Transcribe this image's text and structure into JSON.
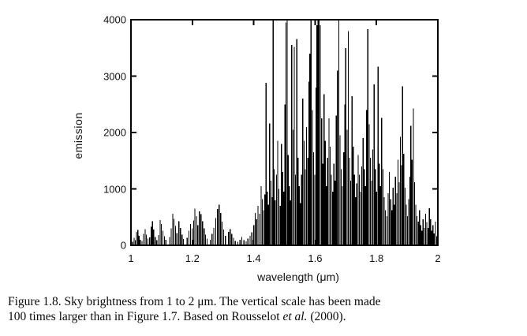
{
  "figure": {
    "caption": {
      "line1": "Figure 1.8. Sky brightness from 1 to 2 μm. The vertical scale has been made",
      "line2_pre": "100 times larger than in Figure 1.7. Based on Rousselot ",
      "line2_italic": "et al.",
      "line2_post": " (2000)."
    }
  },
  "colors": {
    "ink": "#000000",
    "background": "#ffffff"
  },
  "chart_data": {
    "type": "bar",
    "subtype": "emission-line-spectrum",
    "title": "",
    "xlabel": "wavelength (μm)",
    "ylabel": "emission",
    "xlim": [
      1,
      2
    ],
    "ylim": [
      0,
      4000
    ],
    "grid": false,
    "legend": "none",
    "border": "box-with-mirrored-ticks",
    "xticks": [
      {
        "value": 1.0,
        "label": "1"
      },
      {
        "value": 1.2,
        "label": "1.2"
      },
      {
        "value": 1.4,
        "label": "1.4"
      },
      {
        "value": 1.6,
        "label": "1.6"
      },
      {
        "value": 1.8,
        "label": "1.8"
      },
      {
        "value": 2.0,
        "label": "2"
      }
    ],
    "yticks": [
      {
        "value": 0,
        "label": "0"
      },
      {
        "value": 1000,
        "label": "1000"
      },
      {
        "value": 2000,
        "label": "2000"
      },
      {
        "value": 3000,
        "label": "3000"
      },
      {
        "value": 4000,
        "label": "4000"
      }
    ],
    "lines_note": "each entry is [wavelength_um, emission]; values of 4000 are clipped at the plot top",
    "lines": [
      [
        1.006,
        60
      ],
      [
        1.01,
        130
      ],
      [
        1.014,
        90
      ],
      [
        1.018,
        240
      ],
      [
        1.022,
        270
      ],
      [
        1.026,
        170
      ],
      [
        1.03,
        100
      ],
      [
        1.036,
        80
      ],
      [
        1.041,
        200
      ],
      [
        1.046,
        290
      ],
      [
        1.05,
        190
      ],
      [
        1.055,
        120
      ],
      [
        1.061,
        140
      ],
      [
        1.066,
        330
      ],
      [
        1.07,
        430
      ],
      [
        1.074,
        280
      ],
      [
        1.079,
        150
      ],
      [
        1.084,
        90
      ],
      [
        1.09,
        180
      ],
      [
        1.095,
        450
      ],
      [
        1.099,
        380
      ],
      [
        1.104,
        260
      ],
      [
        1.109,
        160
      ],
      [
        1.114,
        100
      ],
      [
        1.126,
        150
      ],
      [
        1.131,
        300
      ],
      [
        1.136,
        560
      ],
      [
        1.14,
        470
      ],
      [
        1.145,
        340
      ],
      [
        1.15,
        220
      ],
      [
        1.156,
        430
      ],
      [
        1.161,
        310
      ],
      [
        1.166,
        190
      ],
      [
        1.171,
        110
      ],
      [
        1.183,
        130
      ],
      [
        1.189,
        260
      ],
      [
        1.194,
        380
      ],
      [
        1.199,
        300
      ],
      [
        1.204,
        440
      ],
      [
        1.208,
        650
      ],
      [
        1.213,
        520
      ],
      [
        1.218,
        360
      ],
      [
        1.223,
        600
      ],
      [
        1.228,
        550
      ],
      [
        1.233,
        430
      ],
      [
        1.238,
        300
      ],
      [
        1.243,
        190
      ],
      [
        1.248,
        120
      ],
      [
        1.258,
        100
      ],
      [
        1.264,
        200
      ],
      [
        1.27,
        310
      ],
      [
        1.276,
        480
      ],
      [
        1.282,
        640
      ],
      [
        1.287,
        720
      ],
      [
        1.292,
        570
      ],
      [
        1.297,
        420
      ],
      [
        1.302,
        280
      ],
      [
        1.308,
        170
      ],
      [
        1.318,
        240
      ],
      [
        1.323,
        290
      ],
      [
        1.328,
        200
      ],
      [
        1.334,
        130
      ],
      [
        1.34,
        80
      ],
      [
        1.348,
        60
      ],
      [
        1.355,
        100
      ],
      [
        1.361,
        150
      ],
      [
        1.368,
        90
      ],
      [
        1.375,
        70
      ],
      [
        1.381,
        120
      ],
      [
        1.388,
        170
      ],
      [
        1.394,
        230
      ],
      [
        1.4,
        360
      ],
      [
        1.405,
        570
      ],
      [
        1.409,
        460
      ],
      [
        1.414,
        700
      ],
      [
        1.419,
        560
      ],
      [
        1.424,
        1050
      ],
      [
        1.428,
        820
      ],
      [
        1.432,
        620
      ],
      [
        1.436,
        900
      ],
      [
        1.44,
        2880
      ],
      [
        1.444,
        950
      ],
      [
        1.448,
        720
      ],
      [
        1.452,
        2160
      ],
      [
        1.456,
        1150
      ],
      [
        1.46,
        850
      ],
      [
        1.463,
        4000
      ],
      [
        1.466,
        1350
      ],
      [
        1.47,
        800
      ],
      [
        1.474,
        1250
      ],
      [
        1.478,
        1850
      ],
      [
        1.482,
        1000
      ],
      [
        1.486,
        700
      ],
      [
        1.49,
        1800
      ],
      [
        1.494,
        1300
      ],
      [
        1.498,
        950
      ],
      [
        1.502,
        2500
      ],
      [
        1.505,
        3950
      ],
      [
        1.509,
        4000
      ],
      [
        1.512,
        1600
      ],
      [
        1.516,
        1050
      ],
      [
        1.52,
        800
      ],
      [
        1.524,
        3550
      ],
      [
        1.528,
        2050
      ],
      [
        1.532,
        3520
      ],
      [
        1.536,
        1250
      ],
      [
        1.54,
        3660
      ],
      [
        1.544,
        1550
      ],
      [
        1.548,
        1050
      ],
      [
        1.552,
        750
      ],
      [
        1.556,
        1250
      ],
      [
        1.56,
        2600
      ],
      [
        1.564,
        1850
      ],
      [
        1.568,
        1350
      ],
      [
        1.572,
        2100
      ],
      [
        1.576,
        1550
      ],
      [
        1.58,
        2900
      ],
      [
        1.583,
        3400
      ],
      [
        1.587,
        4000
      ],
      [
        1.591,
        2400
      ],
      [
        1.595,
        1650
      ],
      [
        1.599,
        1250
      ],
      [
        1.603,
        2800
      ],
      [
        1.606,
        3900
      ],
      [
        1.61,
        4000
      ],
      [
        1.613,
        4000
      ],
      [
        1.617,
        3900
      ],
      [
        1.621,
        2250
      ],
      [
        1.625,
        1450
      ],
      [
        1.629,
        2680
      ],
      [
        1.633,
        1850
      ],
      [
        1.637,
        1050
      ],
      [
        1.641,
        1550
      ],
      [
        1.645,
        2250
      ],
      [
        1.649,
        1750
      ],
      [
        1.653,
        1250
      ],
      [
        1.657,
        950
      ],
      [
        1.661,
        1450
      ],
      [
        1.665,
        1150
      ],
      [
        1.669,
        2300
      ],
      [
        1.673,
        3100
      ],
      [
        1.677,
        4000
      ],
      [
        1.681,
        1950
      ],
      [
        1.685,
        1350
      ],
      [
        1.689,
        1050
      ],
      [
        1.693,
        1650
      ],
      [
        1.697,
        2500
      ],
      [
        1.7,
        3500
      ],
      [
        1.704,
        2050
      ],
      [
        1.708,
        3800
      ],
      [
        1.712,
        1550
      ],
      [
        1.716,
        1150
      ],
      [
        1.72,
        2640
      ],
      [
        1.724,
        1750
      ],
      [
        1.728,
        1250
      ],
      [
        1.732,
        850
      ],
      [
        1.736,
        1100
      ],
      [
        1.74,
        1600
      ],
      [
        1.744,
        1250
      ],
      [
        1.748,
        950
      ],
      [
        1.752,
        1400
      ],
      [
        1.756,
        1900
      ],
      [
        1.76,
        1350
      ],
      [
        1.764,
        1050
      ],
      [
        1.768,
        2400
      ],
      [
        1.772,
        3830
      ],
      [
        1.776,
        2150
      ],
      [
        1.78,
        1550
      ],
      [
        1.784,
        1150
      ],
      [
        1.788,
        1700
      ],
      [
        1.792,
        2850
      ],
      [
        1.796,
        1350
      ],
      [
        1.8,
        950
      ],
      [
        1.805,
        3170
      ],
      [
        1.809,
        1450
      ],
      [
        1.813,
        1050
      ],
      [
        1.817,
        2260
      ],
      [
        1.821,
        1350
      ],
      [
        1.825,
        850
      ],
      [
        1.829,
        620
      ],
      [
        1.834,
        520
      ],
      [
        1.838,
        920
      ],
      [
        1.842,
        1300
      ],
      [
        1.846,
        820
      ],
      [
        1.85,
        620
      ],
      [
        1.854,
        1020
      ],
      [
        1.858,
        720
      ],
      [
        1.862,
        1220
      ],
      [
        1.866,
        920
      ],
      [
        1.87,
        1520
      ],
      [
        1.874,
        1120
      ],
      [
        1.878,
        1920
      ],
      [
        1.882,
        1420
      ],
      [
        1.885,
        2820
      ],
      [
        1.889,
        1620
      ],
      [
        1.893,
        1020
      ],
      [
        1.897,
        720
      ],
      [
        1.901,
        520
      ],
      [
        1.905,
        820
      ],
      [
        1.909,
        1220
      ],
      [
        1.912,
        2120
      ],
      [
        1.916,
        1520
      ],
      [
        1.92,
        2430
      ],
      [
        1.924,
        1120
      ],
      [
        1.928,
        720
      ],
      [
        1.932,
        520
      ],
      [
        1.936,
        420
      ],
      [
        1.94,
        620
      ],
      [
        1.944,
        360
      ],
      [
        1.948,
        260
      ],
      [
        1.952,
        460
      ],
      [
        1.956,
        310
      ],
      [
        1.96,
        560
      ],
      [
        1.964,
        410
      ],
      [
        1.968,
        310
      ],
      [
        1.972,
        660
      ],
      [
        1.976,
        460
      ],
      [
        1.98,
        260
      ],
      [
        1.984,
        360
      ],
      [
        1.988,
        210
      ],
      [
        1.992,
        420
      ],
      [
        1.996,
        160
      ]
    ]
  },
  "layout_labels": {
    "emission_axis": "emission",
    "wavelength_axis": "wavelength (μm)"
  }
}
